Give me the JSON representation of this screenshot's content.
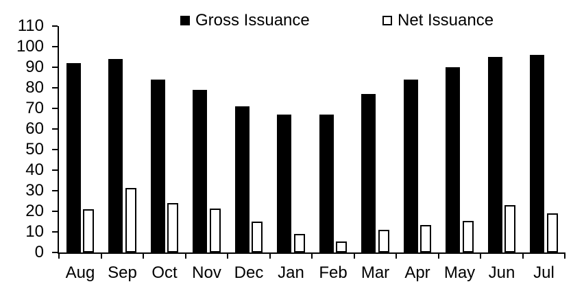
{
  "chart_data": {
    "type": "bar",
    "categories": [
      "Aug",
      "Sep",
      "Oct",
      "Nov",
      "Dec",
      "Jan",
      "Feb",
      "Mar",
      "Apr",
      "May",
      "Jun",
      "Jul"
    ],
    "series": [
      {
        "name": "Gross Issuance",
        "style": "solid-black",
        "values": [
          92,
          94,
          84,
          79,
          71,
          67,
          67,
          77,
          84,
          90,
          95,
          96
        ]
      },
      {
        "name": "Net Issuance",
        "style": "white-outlined",
        "values": [
          21,
          31.5,
          24,
          21.5,
          15,
          9,
          5.5,
          11,
          13.5,
          15.5,
          23,
          19
        ]
      }
    ],
    "title": "",
    "xlabel": "",
    "ylabel": "",
    "ylim": [
      0,
      110
    ],
    "y_ticks": [
      0,
      10,
      20,
      30,
      40,
      50,
      60,
      70,
      80,
      90,
      100,
      110
    ],
    "grid": false,
    "legend_position": "top"
  },
  "colors": {
    "bar_gross": "#000000",
    "bar_net_fill": "#ffffff",
    "bar_net_border": "#000000",
    "axis": "#000000",
    "background": "#ffffff",
    "text": "#000000"
  }
}
